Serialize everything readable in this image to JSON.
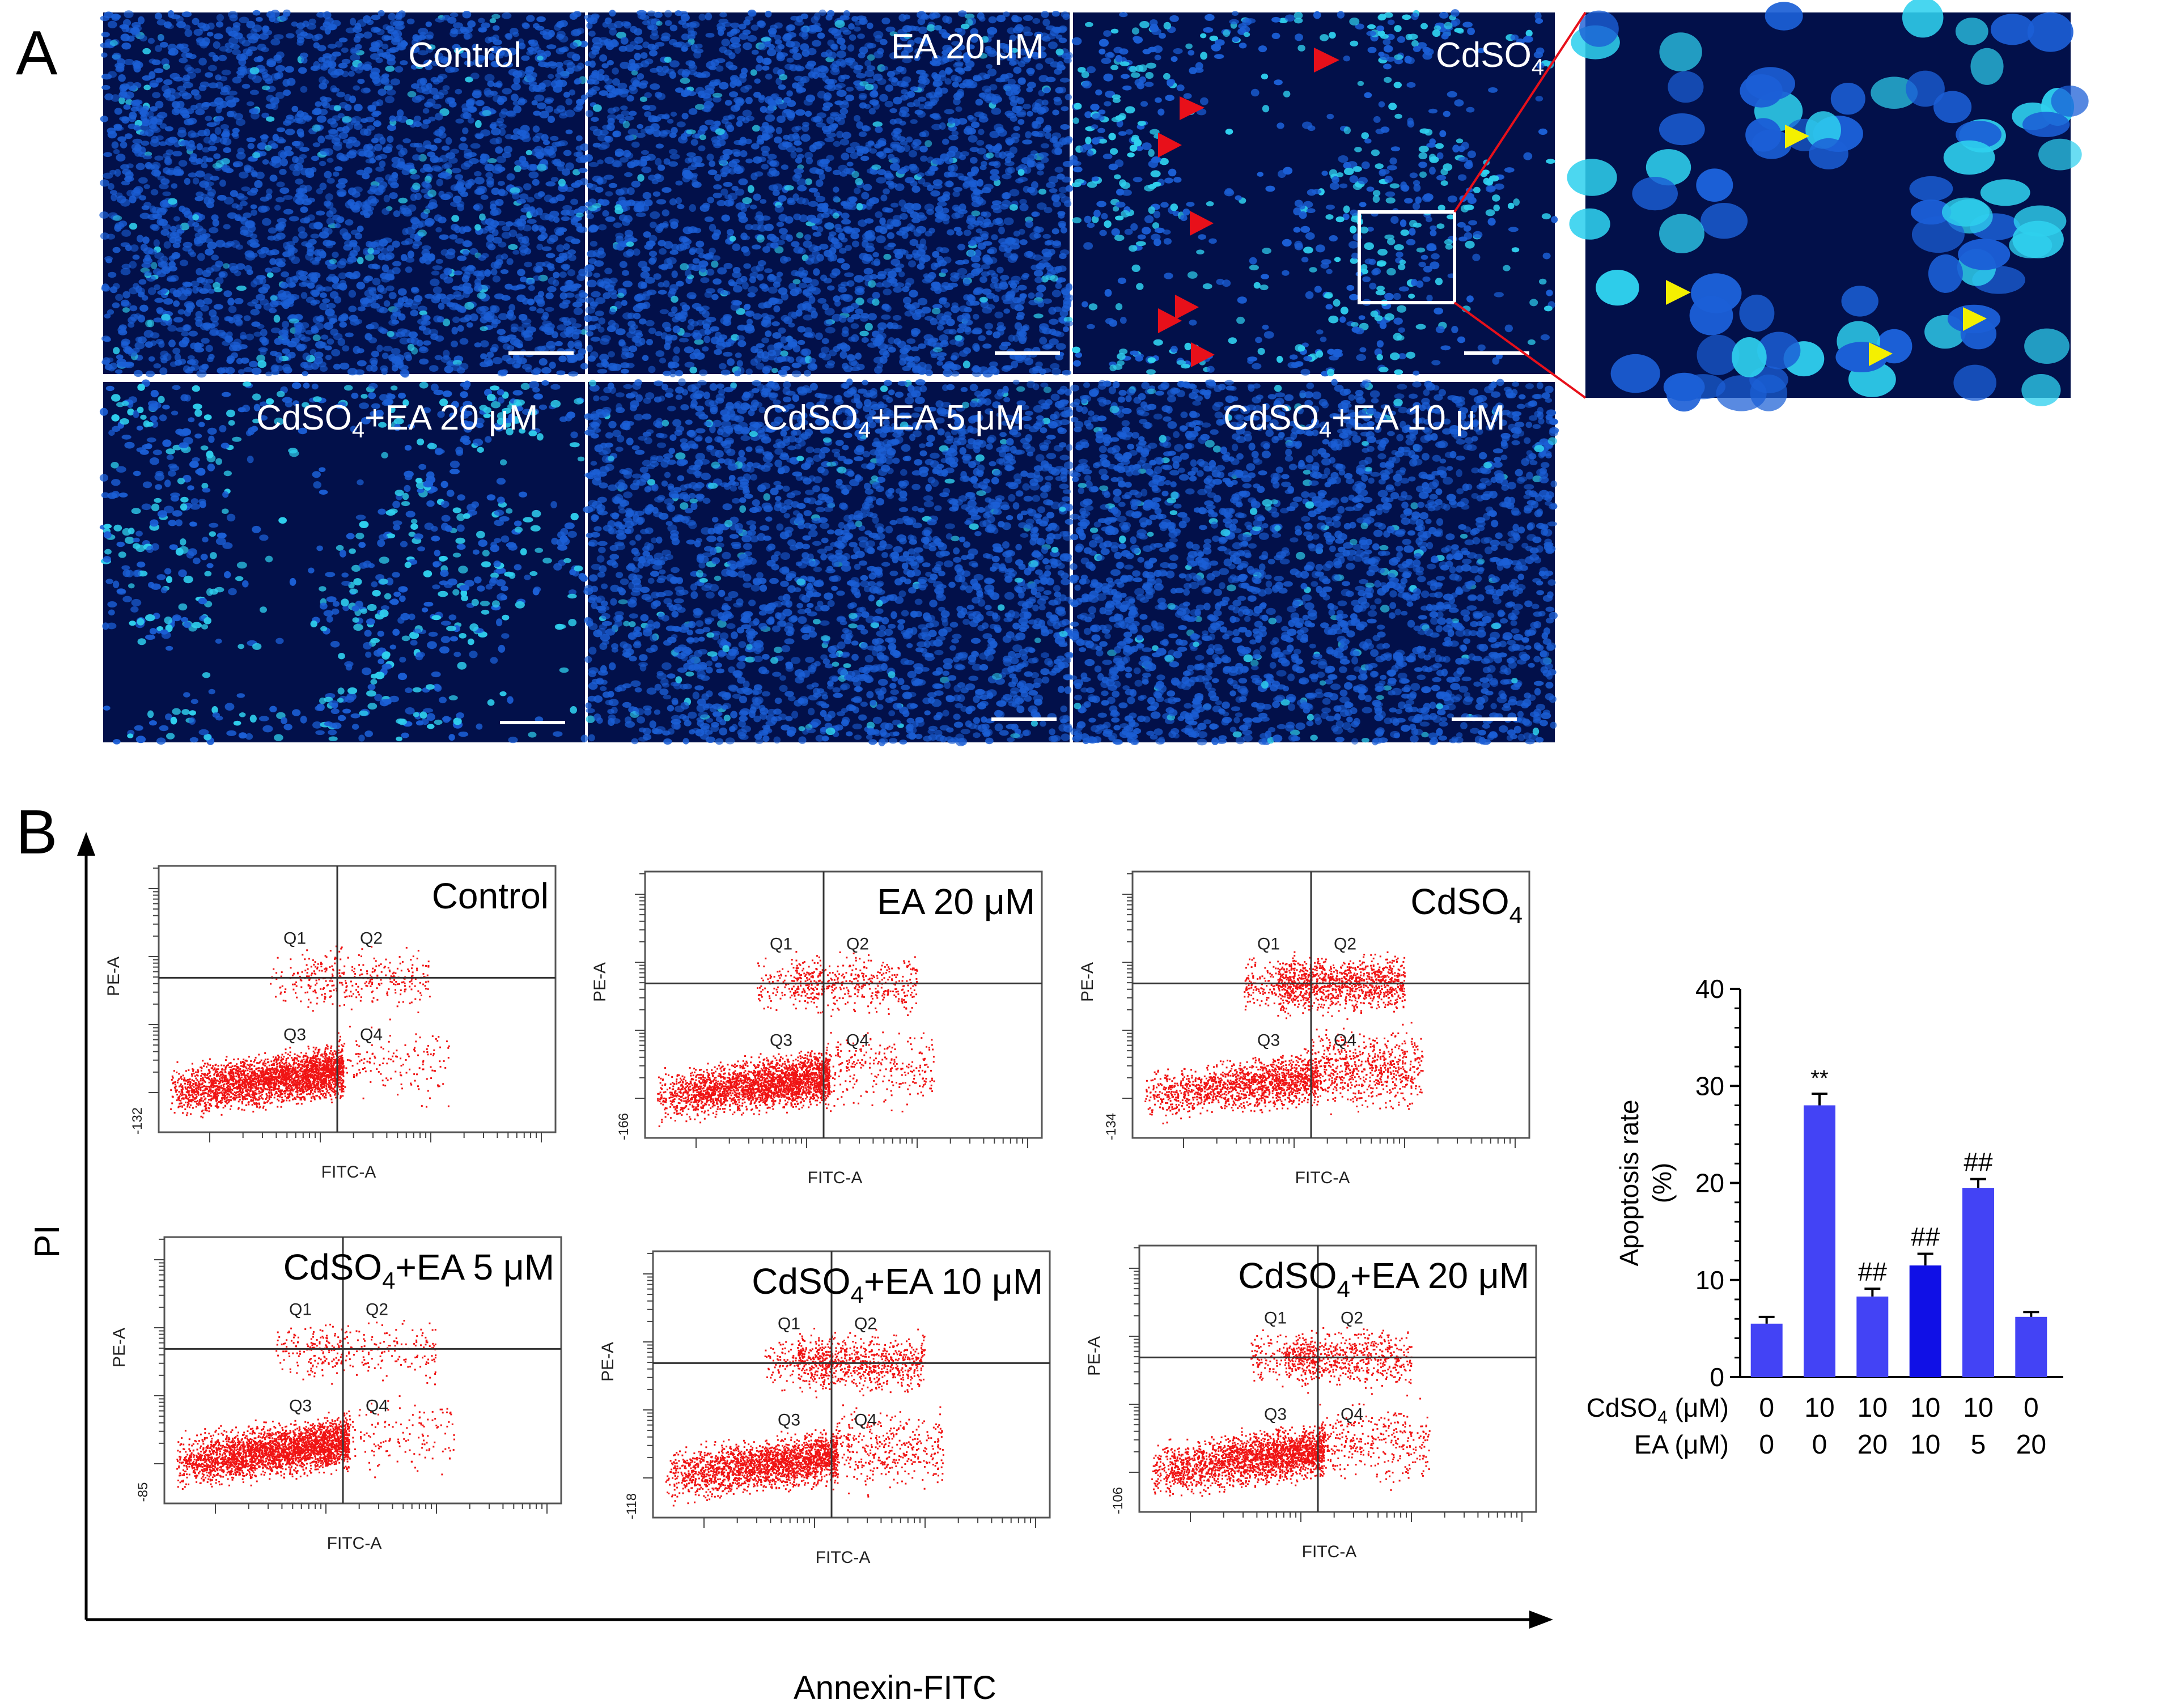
{
  "panel_a": {
    "letter": "A",
    "tiles": [
      {
        "label": "Control",
        "theme": "dense"
      },
      {
        "label": "EA 20 μM",
        "theme": "dense"
      },
      {
        "label": "CdSO4",
        "theme": "sparse"
      },
      {
        "label": "CdSO4+EA 20 μM",
        "theme": "medium"
      },
      {
        "label": "CdSO4+EA 5 μM",
        "theme": "dense"
      },
      {
        "label": "CdSO4+EA 10 μM",
        "theme": "dense"
      }
    ],
    "colors": {
      "tile_bg": "#02104a",
      "nucleus": "#1b5fd6",
      "bright_nucleus": "#2fd0ee",
      "arrow_red": "#e8101a",
      "arrow_yellow": "#f4f000",
      "zoom_line": "#e8101a"
    }
  },
  "panel_b": {
    "letter": "B",
    "y_axis_label": "PI",
    "x_axis_label": "Annexin-FITC",
    "flow_plots": [
      {
        "label": "Control",
        "ymin_tick": "-132",
        "q1": "Q1",
        "q2": "Q2",
        "q3": "Q3",
        "q4": "Q4",
        "xlabel": "FITC-A",
        "ylabel": "PE-A"
      },
      {
        "label": "EA 20 μM",
        "ymin_tick": "-166",
        "q1": "Q1",
        "q2": "Q2",
        "q3": "Q3",
        "q4": "Q4",
        "xlabel": "FITC-A",
        "ylabel": "PE-A"
      },
      {
        "label": "CdSO4",
        "ymin_tick": "-134",
        "q1": "Q1",
        "q2": "Q2",
        "q3": "Q3",
        "q4": "Q4",
        "xlabel": "FITC-A",
        "ylabel": "PE-A"
      },
      {
        "label": "CdSO4+EA 5 μM",
        "ymin_tick": "-85",
        "q1": "Q1",
        "q2": "Q2",
        "q3": "Q3",
        "q4": "Q4",
        "xlabel": "FITC-A",
        "ylabel": "PE-A"
      },
      {
        "label": "CdSO4+EA 10 μM",
        "ymin_tick": "-118",
        "q1": "Q1",
        "q2": "Q2",
        "q3": "Q3",
        "q4": "Q4",
        "xlabel": "FITC-A",
        "ylabel": "PE-A"
      },
      {
        "label": "CdSO4+EA 20 μM",
        "ymin_tick": "-106",
        "q1": "Q1",
        "q2": "Q2",
        "q3": "Q3",
        "q4": "Q4",
        "xlabel": "FITC-A",
        "ylabel": "PE-A"
      }
    ],
    "dot_color": "#f01414"
  },
  "chart_data": {
    "type": "bar",
    "ylabel": "Apoptosis rate (%)",
    "ylim": [
      0,
      40
    ],
    "yticks": [
      0,
      10,
      20,
      30,
      40
    ],
    "values": [
      5.5,
      28.0,
      8.3,
      11.5,
      19.5,
      6.2
    ],
    "errors": [
      0.7,
      1.2,
      0.8,
      1.2,
      0.9,
      0.5
    ],
    "annotations": [
      "",
      "**",
      "##",
      "##",
      "##",
      ""
    ],
    "row_labels": [
      {
        "label": "CdSO4 (μM)",
        "values": [
          "0",
          "10",
          "10",
          "10",
          "10",
          "0"
        ]
      },
      {
        "label": "EA (μM)",
        "values": [
          "0",
          "0",
          "20",
          "10",
          "5",
          "20"
        ]
      }
    ],
    "bar_colors": [
      "#4343f5",
      "#4343f5",
      "#4343f5",
      "#1010e6",
      "#4343f5",
      "#4343f5"
    ]
  }
}
